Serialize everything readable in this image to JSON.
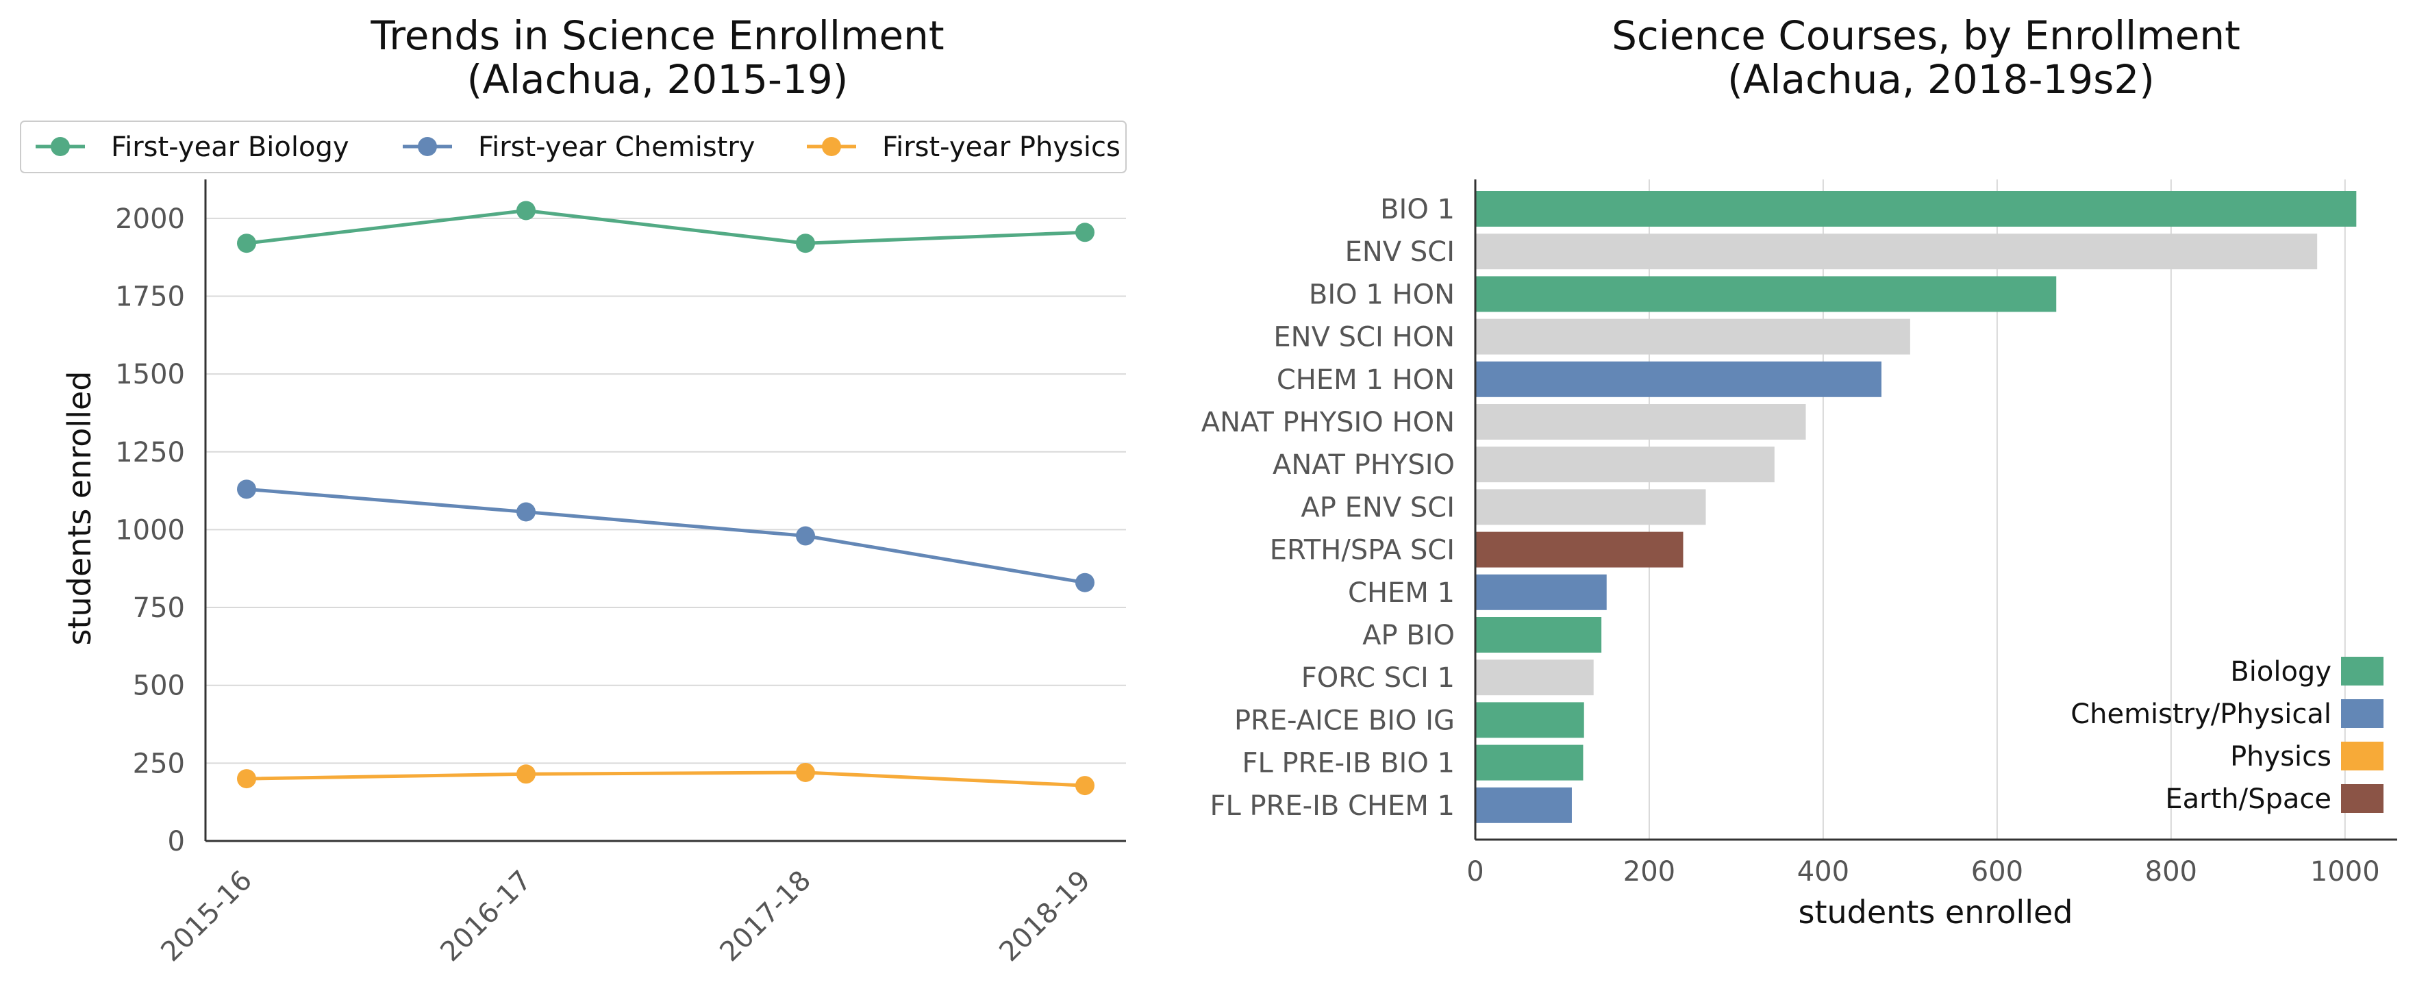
{
  "chart_data": [
    {
      "type": "line",
      "title": "Trends in Science Enrollment",
      "subtitle": "(Alachua, 2015-19)",
      "xlabel": "",
      "ylabel": "students enrolled",
      "categories": [
        "2015-16",
        "2016-17",
        "2017-18",
        "2018-19"
      ],
      "ylim": [
        0,
        2125
      ],
      "yticks": [
        0,
        250,
        500,
        750,
        1000,
        1250,
        1500,
        1750,
        2000
      ],
      "grid": "horizontal",
      "legend_position": "top",
      "series": [
        {
          "name": "First-year Biology",
          "color": "#52AA84",
          "values": [
            1920,
            2025,
            1920,
            1955
          ]
        },
        {
          "name": "First-year Chemistry",
          "color": "#6387B6",
          "values": [
            1130,
            1057,
            980,
            830
          ]
        },
        {
          "name": "First-year Physics",
          "color": "#F7AA38",
          "values": [
            200,
            215,
            220,
            178
          ]
        }
      ]
    },
    {
      "type": "bar",
      "orientation": "horizontal",
      "title": "Science Courses, by Enrollment",
      "subtitle": "(Alachua, 2018-19s2)",
      "xlabel": "students enrolled",
      "ylabel": "",
      "xlim": [
        0,
        1060
      ],
      "xticks": [
        0,
        200,
        400,
        600,
        800,
        1000
      ],
      "grid": "vertical",
      "legend_position": "lower-right",
      "legend": [
        {
          "name": "Biology",
          "color": "#52AA84"
        },
        {
          "name": "Chemistry/Physical",
          "color": "#6387B6"
        },
        {
          "name": "Physics",
          "color": "#F7AA38"
        },
        {
          "name": "Earth/Space",
          "color": "#8B5446"
        }
      ],
      "other_color": "#D3D3D3",
      "bars": [
        {
          "label": "BIO 1",
          "value": 1013,
          "color": "#52AA84"
        },
        {
          "label": "ENV SCI",
          "value": 968,
          "color": "#D3D3D3"
        },
        {
          "label": "BIO 1 HON",
          "value": 668,
          "color": "#52AA84"
        },
        {
          "label": "ENV SCI HON",
          "value": 500,
          "color": "#D3D3D3"
        },
        {
          "label": "CHEM 1 HON",
          "value": 467,
          "color": "#6387B6"
        },
        {
          "label": "ANAT PHYSIO HON",
          "value": 380,
          "color": "#D3D3D3"
        },
        {
          "label": "ANAT PHYSIO",
          "value": 344,
          "color": "#D3D3D3"
        },
        {
          "label": "AP ENV SCI",
          "value": 265,
          "color": "#D3D3D3"
        },
        {
          "label": "ERTH/SPA SCI",
          "value": 239,
          "color": "#8B5446"
        },
        {
          "label": "CHEM 1",
          "value": 151,
          "color": "#6387B6"
        },
        {
          "label": "AP BIO",
          "value": 145,
          "color": "#52AA84"
        },
        {
          "label": "FORC SCI 1",
          "value": 136,
          "color": "#D3D3D3"
        },
        {
          "label": "PRE-AICE BIO IG",
          "value": 125,
          "color": "#52AA84"
        },
        {
          "label": "FL PRE-IB BIO 1",
          "value": 124,
          "color": "#52AA84"
        },
        {
          "label": "FL PRE-IB CHEM 1",
          "value": 111,
          "color": "#6387B6"
        }
      ]
    }
  ]
}
